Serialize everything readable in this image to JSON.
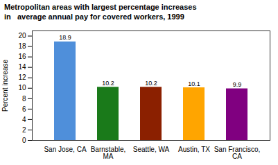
{
  "chart_data": {
    "type": "bar",
    "title": "Metropolitan areas with largest percentage increases\nin   average annual pay for covered workers, 1999",
    "categories": [
      "San Jose, CA",
      "Barnstable,\nMA",
      "Seattle, WA",
      "Austin, TX",
      "San Francisco,\nCA"
    ],
    "values": [
      18.9,
      10.2,
      10.2,
      10.1,
      9.9
    ],
    "colors": [
      "#4f8fda",
      "#1a7a1a",
      "#8B2000",
      "#FFA500",
      "#800080"
    ],
    "ylabel": "Percent increase",
    "ylim": [
      0,
      21
    ],
    "yticks": [
      0,
      2,
      4,
      6,
      8,
      10,
      12,
      14,
      16,
      18,
      20
    ],
    "grid": false,
    "data_labels": true
  }
}
